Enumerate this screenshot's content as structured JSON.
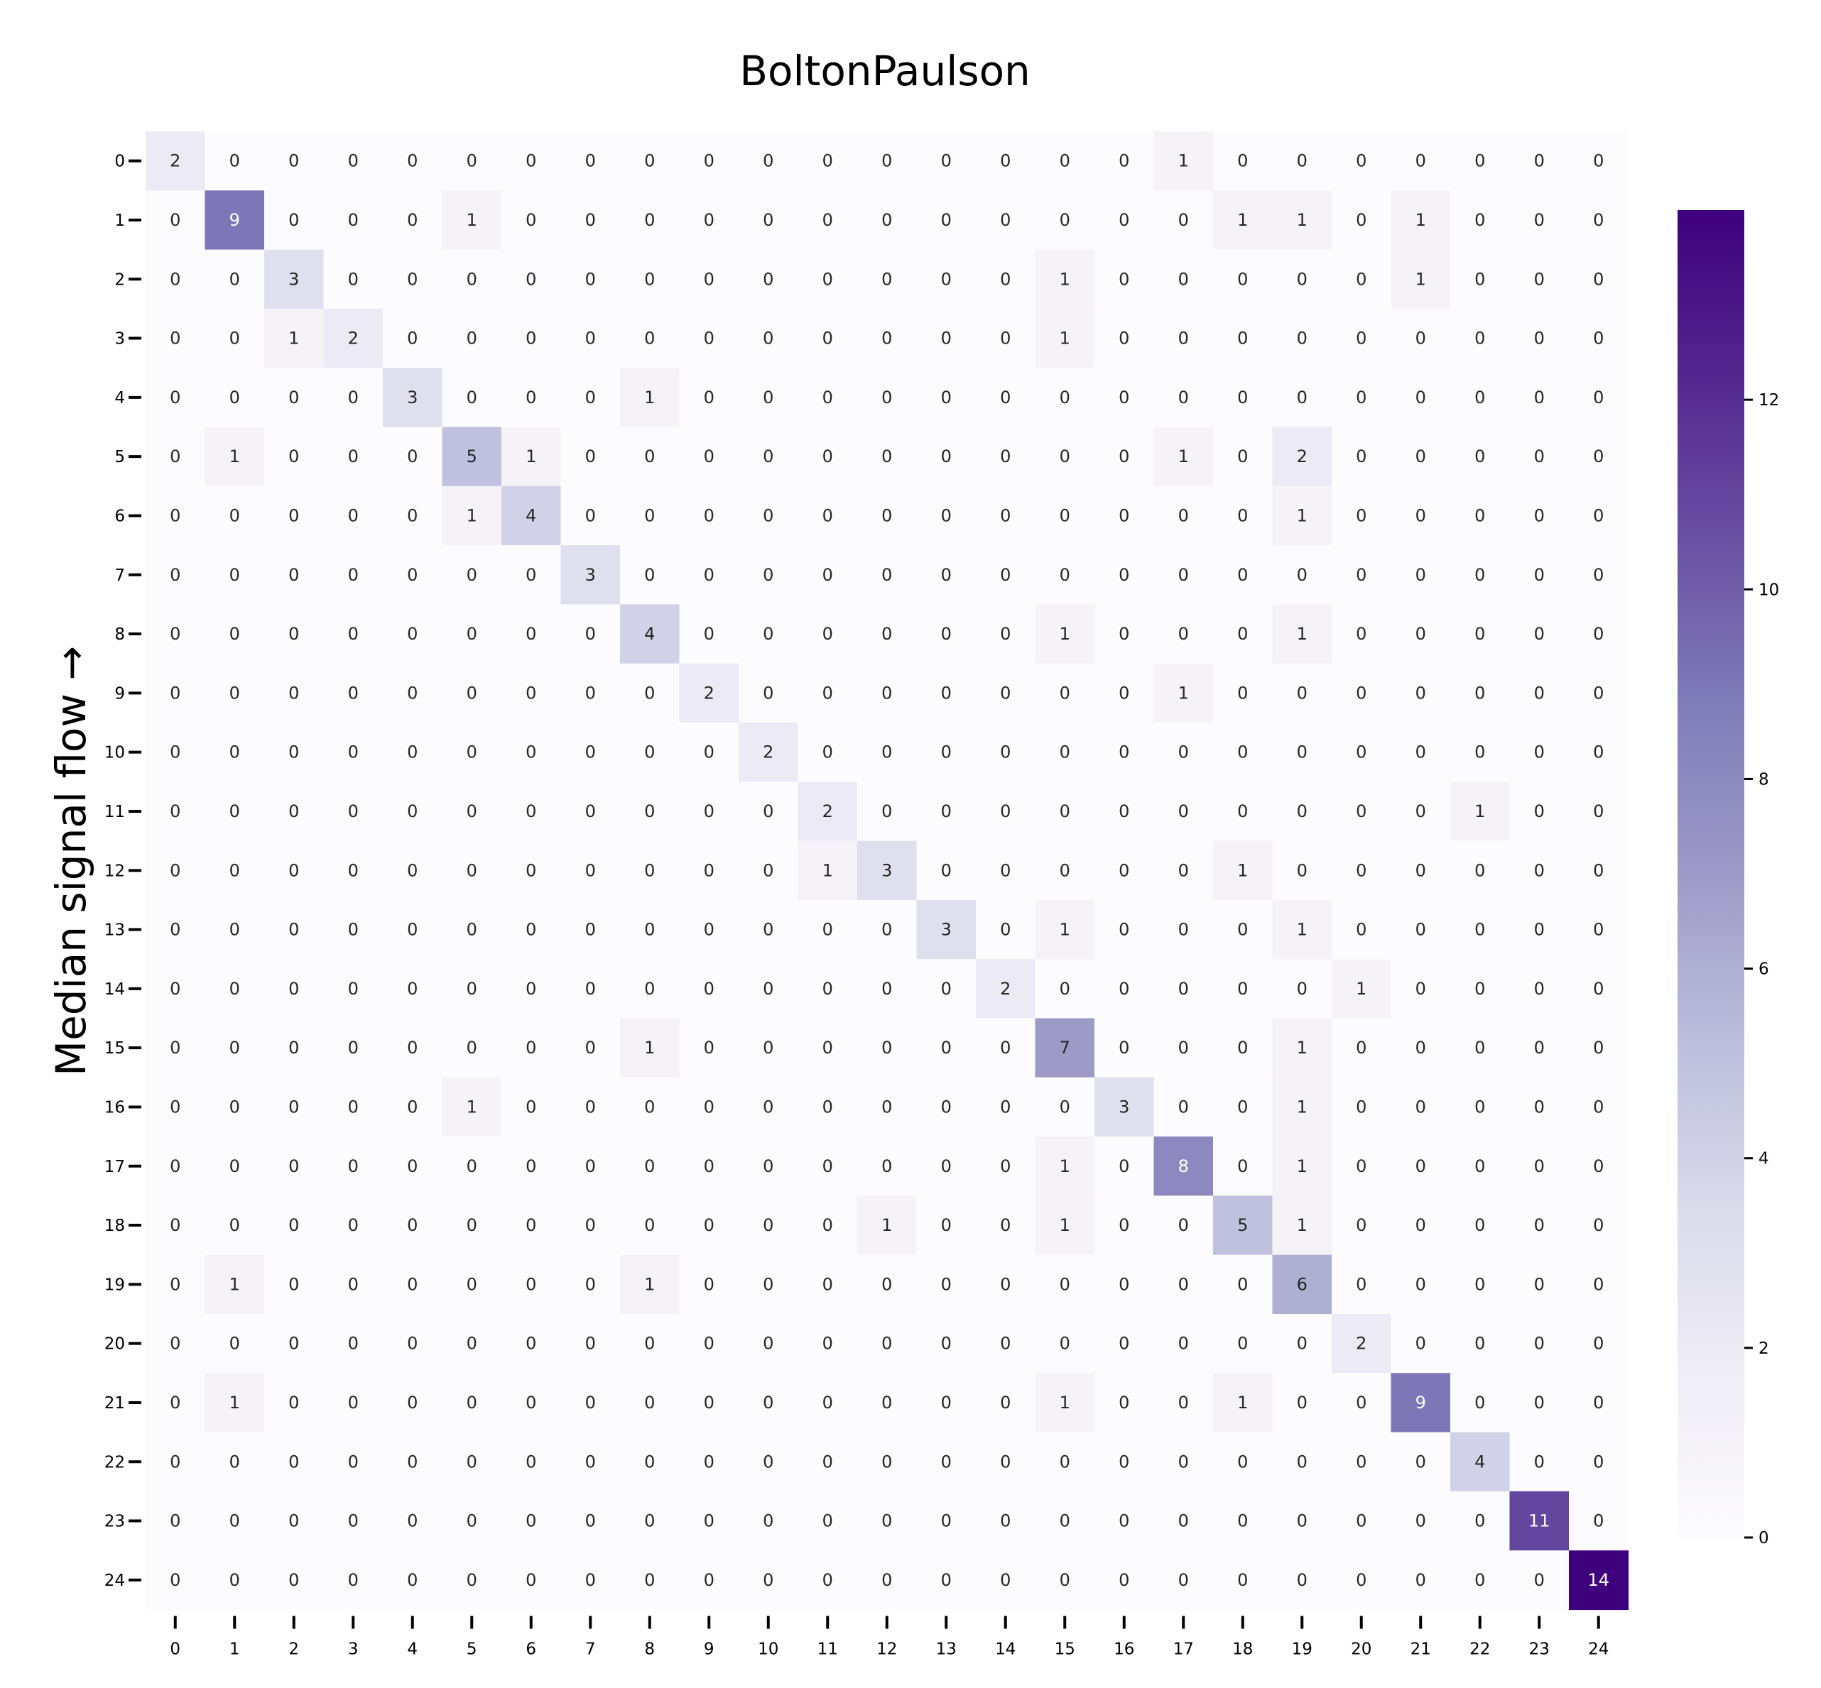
{
  "chart_data": {
    "type": "heatmap",
    "title": "BoltonPaulson",
    "ylabel": "Median signal flow →",
    "xlabel": "",
    "x_categories": [
      "0",
      "1",
      "2",
      "3",
      "4",
      "5",
      "6",
      "7",
      "8",
      "9",
      "10",
      "11",
      "12",
      "13",
      "14",
      "15",
      "16",
      "17",
      "18",
      "19",
      "20",
      "21",
      "22",
      "23",
      "24"
    ],
    "y_categories": [
      "0",
      "1",
      "2",
      "3",
      "4",
      "5",
      "6",
      "7",
      "8",
      "9",
      "10",
      "11",
      "12",
      "13",
      "14",
      "15",
      "16",
      "17",
      "18",
      "19",
      "20",
      "21",
      "22",
      "23",
      "24"
    ],
    "values": [
      [
        2,
        0,
        0,
        0,
        0,
        0,
        0,
        0,
        0,
        0,
        0,
        0,
        0,
        0,
        0,
        0,
        0,
        1,
        0,
        0,
        0,
        0,
        0,
        0,
        0
      ],
      [
        0,
        9,
        0,
        0,
        0,
        1,
        0,
        0,
        0,
        0,
        0,
        0,
        0,
        0,
        0,
        0,
        0,
        0,
        1,
        1,
        0,
        1,
        0,
        0,
        0
      ],
      [
        0,
        0,
        3,
        0,
        0,
        0,
        0,
        0,
        0,
        0,
        0,
        0,
        0,
        0,
        0,
        1,
        0,
        0,
        0,
        0,
        0,
        1,
        0,
        0,
        0
      ],
      [
        0,
        0,
        1,
        2,
        0,
        0,
        0,
        0,
        0,
        0,
        0,
        0,
        0,
        0,
        0,
        1,
        0,
        0,
        0,
        0,
        0,
        0,
        0,
        0,
        0
      ],
      [
        0,
        0,
        0,
        0,
        3,
        0,
        0,
        0,
        1,
        0,
        0,
        0,
        0,
        0,
        0,
        0,
        0,
        0,
        0,
        0,
        0,
        0,
        0,
        0,
        0
      ],
      [
        0,
        1,
        0,
        0,
        0,
        5,
        1,
        0,
        0,
        0,
        0,
        0,
        0,
        0,
        0,
        0,
        0,
        1,
        0,
        2,
        0,
        0,
        0,
        0,
        0
      ],
      [
        0,
        0,
        0,
        0,
        0,
        1,
        4,
        0,
        0,
        0,
        0,
        0,
        0,
        0,
        0,
        0,
        0,
        0,
        0,
        1,
        0,
        0,
        0,
        0,
        0
      ],
      [
        0,
        0,
        0,
        0,
        0,
        0,
        0,
        3,
        0,
        0,
        0,
        0,
        0,
        0,
        0,
        0,
        0,
        0,
        0,
        0,
        0,
        0,
        0,
        0,
        0
      ],
      [
        0,
        0,
        0,
        0,
        0,
        0,
        0,
        0,
        4,
        0,
        0,
        0,
        0,
        0,
        0,
        1,
        0,
        0,
        0,
        1,
        0,
        0,
        0,
        0,
        0
      ],
      [
        0,
        0,
        0,
        0,
        0,
        0,
        0,
        0,
        0,
        2,
        0,
        0,
        0,
        0,
        0,
        0,
        0,
        1,
        0,
        0,
        0,
        0,
        0,
        0,
        0
      ],
      [
        0,
        0,
        0,
        0,
        0,
        0,
        0,
        0,
        0,
        0,
        2,
        0,
        0,
        0,
        0,
        0,
        0,
        0,
        0,
        0,
        0,
        0,
        0,
        0,
        0
      ],
      [
        0,
        0,
        0,
        0,
        0,
        0,
        0,
        0,
        0,
        0,
        0,
        2,
        0,
        0,
        0,
        0,
        0,
        0,
        0,
        0,
        0,
        0,
        1,
        0,
        0
      ],
      [
        0,
        0,
        0,
        0,
        0,
        0,
        0,
        0,
        0,
        0,
        0,
        1,
        3,
        0,
        0,
        0,
        0,
        0,
        1,
        0,
        0,
        0,
        0,
        0,
        0
      ],
      [
        0,
        0,
        0,
        0,
        0,
        0,
        0,
        0,
        0,
        0,
        0,
        0,
        0,
        3,
        0,
        1,
        0,
        0,
        0,
        1,
        0,
        0,
        0,
        0,
        0
      ],
      [
        0,
        0,
        0,
        0,
        0,
        0,
        0,
        0,
        0,
        0,
        0,
        0,
        0,
        0,
        2,
        0,
        0,
        0,
        0,
        0,
        1,
        0,
        0,
        0,
        0
      ],
      [
        0,
        0,
        0,
        0,
        0,
        0,
        0,
        0,
        1,
        0,
        0,
        0,
        0,
        0,
        0,
        7,
        0,
        0,
        0,
        1,
        0,
        0,
        0,
        0,
        0
      ],
      [
        0,
        0,
        0,
        0,
        0,
        1,
        0,
        0,
        0,
        0,
        0,
        0,
        0,
        0,
        0,
        0,
        3,
        0,
        0,
        1,
        0,
        0,
        0,
        0,
        0
      ],
      [
        0,
        0,
        0,
        0,
        0,
        0,
        0,
        0,
        0,
        0,
        0,
        0,
        0,
        0,
        0,
        1,
        0,
        8,
        0,
        1,
        0,
        0,
        0,
        0,
        0
      ],
      [
        0,
        0,
        0,
        0,
        0,
        0,
        0,
        0,
        0,
        0,
        0,
        0,
        1,
        0,
        0,
        1,
        0,
        0,
        5,
        1,
        0,
        0,
        0,
        0,
        0
      ],
      [
        0,
        1,
        0,
        0,
        0,
        0,
        0,
        0,
        1,
        0,
        0,
        0,
        0,
        0,
        0,
        0,
        0,
        0,
        0,
        6,
        0,
        0,
        0,
        0,
        0
      ],
      [
        0,
        0,
        0,
        0,
        0,
        0,
        0,
        0,
        0,
        0,
        0,
        0,
        0,
        0,
        0,
        0,
        0,
        0,
        0,
        0,
        2,
        0,
        0,
        0,
        0
      ],
      [
        0,
        1,
        0,
        0,
        0,
        0,
        0,
        0,
        0,
        0,
        0,
        0,
        0,
        0,
        0,
        1,
        0,
        0,
        1,
        0,
        0,
        9,
        0,
        0,
        0
      ],
      [
        0,
        0,
        0,
        0,
        0,
        0,
        0,
        0,
        0,
        0,
        0,
        0,
        0,
        0,
        0,
        0,
        0,
        0,
        0,
        0,
        0,
        0,
        4,
        0,
        0
      ],
      [
        0,
        0,
        0,
        0,
        0,
        0,
        0,
        0,
        0,
        0,
        0,
        0,
        0,
        0,
        0,
        0,
        0,
        0,
        0,
        0,
        0,
        0,
        0,
        11,
        0
      ],
      [
        0,
        0,
        0,
        0,
        0,
        0,
        0,
        0,
        0,
        0,
        0,
        0,
        0,
        0,
        0,
        0,
        0,
        0,
        0,
        0,
        0,
        0,
        0,
        0,
        14
      ]
    ],
    "colormap": "Purples",
    "color_low": "#fcfbfd",
    "color_high": "#3f007d",
    "colorbar": {
      "range": [
        0,
        14
      ],
      "ticks": [
        "0",
        "2",
        "4",
        "6",
        "8",
        "10",
        "12"
      ]
    },
    "grid": false,
    "legend": "colorbar-right"
  }
}
